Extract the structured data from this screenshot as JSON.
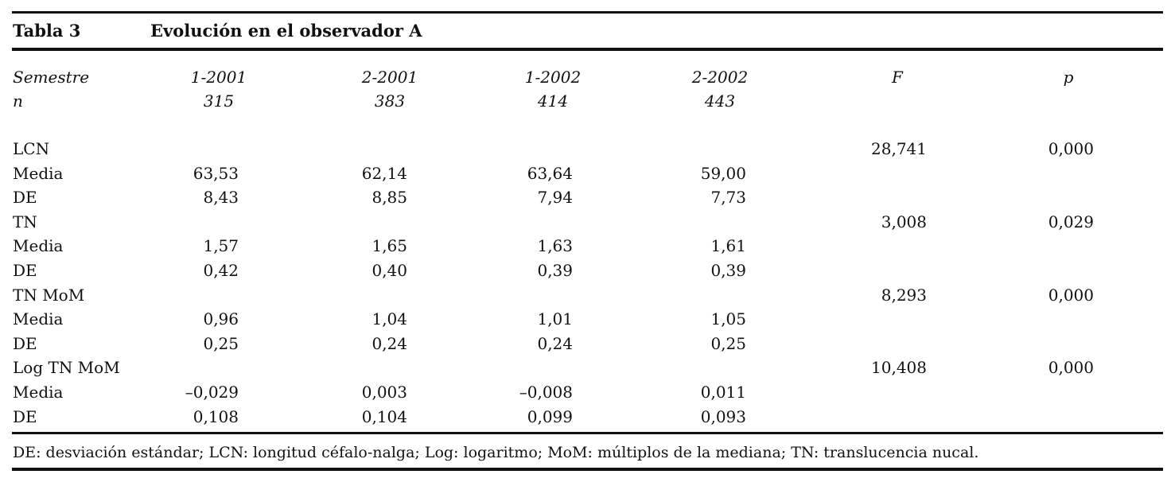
{
  "table": {
    "label": "Tabla 3",
    "title": "Evolución en el observador A",
    "header": {
      "row1": [
        "Semestre",
        "1-2001",
        "2-2001",
        "1-2002",
        "2-2002",
        "F",
        "p"
      ],
      "row2": [
        "n",
        "315",
        "383",
        "414",
        "443"
      ]
    },
    "rows": [
      {
        "label": "LCN",
        "values": [
          "",
          "",
          "",
          "",
          "28,741",
          "0,000"
        ]
      },
      {
        "label": "Media",
        "values": [
          "63,53",
          "62,14",
          "63,64",
          "59,00",
          "",
          ""
        ]
      },
      {
        "label": "DE",
        "values": [
          "8,43",
          "8,85",
          "7,94",
          "7,73",
          "",
          ""
        ]
      },
      {
        "label": "TN",
        "values": [
          "",
          "",
          "",
          "",
          "3,008",
          "0,029"
        ]
      },
      {
        "label": "Media",
        "values": [
          "1,57",
          "1,65",
          "1,63",
          "1,61",
          "",
          ""
        ]
      },
      {
        "label": "DE",
        "values": [
          "0,42",
          "0,40",
          "0,39",
          "0,39",
          "",
          ""
        ]
      },
      {
        "label": "TN MoM",
        "values": [
          "",
          "",
          "",
          "",
          "8,293",
          "0,000"
        ]
      },
      {
        "label": "Media",
        "values": [
          "0,96",
          "1,04",
          "1,01",
          "1,05",
          "",
          ""
        ]
      },
      {
        "label": "DE",
        "values": [
          "0,25",
          "0,24",
          "0,24",
          "0,25",
          "",
          ""
        ]
      },
      {
        "label": "Log TN MoM",
        "values": [
          "",
          "",
          "",
          "",
          "10,408",
          "0,000"
        ]
      },
      {
        "label": "Media",
        "values": [
          "–0,029",
          "0,003",
          "–0,008",
          "0,011",
          "",
          ""
        ]
      },
      {
        "label": "DE",
        "values": [
          "0,108",
          "0,104",
          "0,099",
          "0,093",
          "",
          ""
        ]
      }
    ],
    "footnote": "DE: desviación estándar; LCN: longitud céfalo-nalga; Log: logaritmo; MoM: múltiplos de la mediana; TN: translucencia nucal."
  }
}
